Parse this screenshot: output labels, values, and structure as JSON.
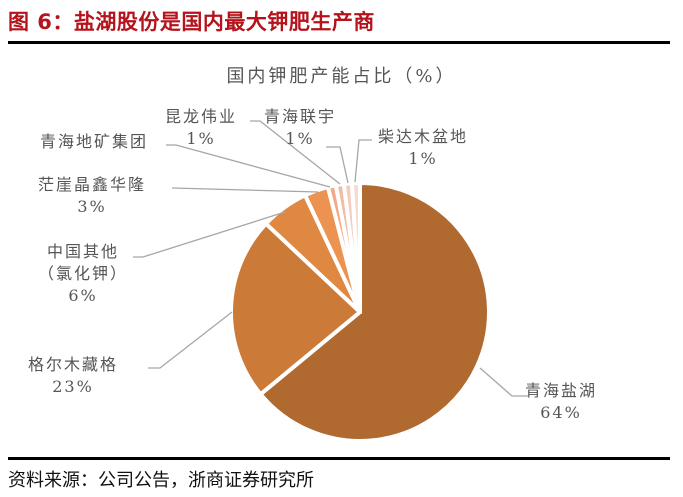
{
  "figure": {
    "title": "图 6：盐湖股份是国内最大钾肥生产商",
    "source": "资料来源：公司公告，浙商证券研究所"
  },
  "chart_data": {
    "type": "pie",
    "title": "国内钾肥产能占比（%）",
    "start_angle": "12 o'clock, clockwise",
    "slices": [
      {
        "name": "青海盐湖",
        "value": 64,
        "label": "64%",
        "color": "#B0692F"
      },
      {
        "name": "格尔木藏格",
        "value": 23,
        "label": "23%",
        "color": "#CC7A38"
      },
      {
        "name": "中国其他（氯化钾）",
        "value": 6,
        "label": "6%",
        "color": "#DF8841"
      },
      {
        "name": "茫崖晶鑫华隆",
        "value": 3,
        "label": "3%",
        "color": "#EC9352"
      },
      {
        "name": "青海地矿集团",
        "value": 1,
        "label": "",
        "color": "#F2A98A"
      },
      {
        "name": "昆龙伟业",
        "value": 1,
        "label": "1%",
        "color": "#F1BBA5"
      },
      {
        "name": "青海联宇",
        "value": 1,
        "label": "1%",
        "color": "#F3CCBD"
      },
      {
        "name": "柴达木盆地",
        "value": 1,
        "label": "1%",
        "color": "#F5DBD3"
      }
    ]
  },
  "labels": {
    "qhyh": {
      "name": "青海盐湖",
      "pct": "64%"
    },
    "gem": {
      "name": "格尔木藏格",
      "pct": "23%"
    },
    "zgqt": {
      "name1": "中国其他",
      "name2": "（氯化钾）",
      "pct": "6%"
    },
    "my": {
      "name": "茫崖晶鑫华隆",
      "pct": "3%"
    },
    "qhdk": {
      "name": "青海地矿集团"
    },
    "klwy": {
      "name": "昆龙伟业",
      "pct": "1%"
    },
    "qhly": {
      "name": "青海联宇",
      "pct": "1%"
    },
    "cdm": {
      "name": "柴达木盆地",
      "pct": "1%"
    }
  }
}
